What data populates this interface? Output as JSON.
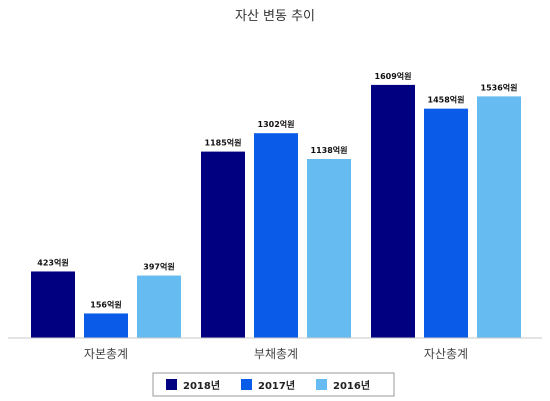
{
  "chart_data": {
    "type": "bar",
    "title": "자산 변동 추이",
    "categories": [
      "자본총계",
      "부채총계",
      "자산총계"
    ],
    "series": [
      {
        "name": "2018년",
        "values": [
          423,
          1185,
          1609
        ],
        "labels": [
          "423억원",
          "1185억원",
          "1609억원"
        ],
        "color": "#000080"
      },
      {
        "name": "2017년",
        "values": [
          156,
          1302,
          1458
        ],
        "labels": [
          "156억원",
          "1302억원",
          "1458억원"
        ],
        "color": "#0a5ce8"
      },
      {
        "name": "2016년",
        "values": [
          397,
          1138,
          1536
        ],
        "labels": [
          "397억원",
          "1138억원",
          "1536억원"
        ],
        "color": "#66bbf0"
      }
    ],
    "ylim": [
      0,
      1800
    ],
    "grid": false,
    "legend_position": "bottom"
  }
}
